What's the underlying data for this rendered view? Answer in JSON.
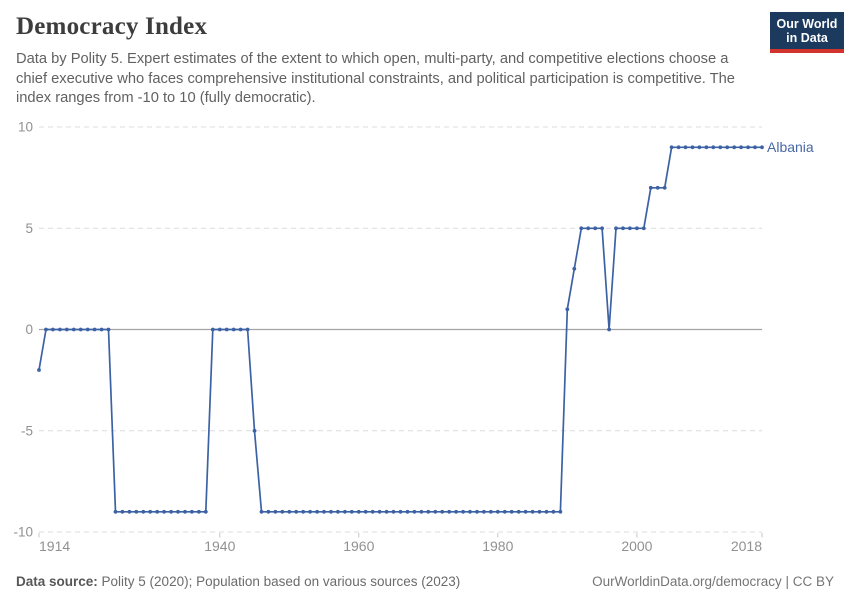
{
  "header": {
    "title": "Democracy Index",
    "subtitle": "Data by Polity 5. Expert estimates of the extent to which open, multi-party, and competitive elections choose a chief executive who faces comprehensive institutional constraints, and political participation is competitive. The index ranges from -10 to 10 (fully democratic)."
  },
  "logo": {
    "line1": "Our World",
    "line2": "in Data",
    "bg": "#1b3a5e",
    "accent": "#d0342c"
  },
  "chart_data": {
    "type": "line",
    "title": "Democracy Index",
    "entity": "Albania",
    "xlabel": "",
    "ylabel": "",
    "xlim": [
      1914,
      2018
    ],
    "ylim": [
      -10,
      10
    ],
    "x_ticks": [
      1914,
      1940,
      1960,
      1980,
      2000,
      2018
    ],
    "y_ticks": [
      -10,
      -5,
      0,
      5,
      10
    ],
    "grid": "horizontal dashed gridlines, solid zero line",
    "legend_position": "label at end of line",
    "series": [
      {
        "name": "Albania",
        "color": "#3c62a4",
        "points": [
          [
            1914,
            -2
          ],
          [
            1915,
            0
          ],
          [
            1916,
            0
          ],
          [
            1917,
            0
          ],
          [
            1918,
            0
          ],
          [
            1919,
            0
          ],
          [
            1920,
            0
          ],
          [
            1921,
            0
          ],
          [
            1922,
            0
          ],
          [
            1923,
            0
          ],
          [
            1924,
            0
          ],
          [
            1925,
            -9
          ],
          [
            1926,
            -9
          ],
          [
            1927,
            -9
          ],
          [
            1928,
            -9
          ],
          [
            1929,
            -9
          ],
          [
            1930,
            -9
          ],
          [
            1931,
            -9
          ],
          [
            1932,
            -9
          ],
          [
            1933,
            -9
          ],
          [
            1934,
            -9
          ],
          [
            1935,
            -9
          ],
          [
            1936,
            -9
          ],
          [
            1937,
            -9
          ],
          [
            1938,
            -9
          ],
          [
            1939,
            0
          ],
          [
            1940,
            0
          ],
          [
            1941,
            0
          ],
          [
            1942,
            0
          ],
          [
            1943,
            0
          ],
          [
            1944,
            0
          ],
          [
            1945,
            -5
          ],
          [
            1946,
            -9
          ],
          [
            1947,
            -9
          ],
          [
            1948,
            -9
          ],
          [
            1949,
            -9
          ],
          [
            1950,
            -9
          ],
          [
            1951,
            -9
          ],
          [
            1952,
            -9
          ],
          [
            1953,
            -9
          ],
          [
            1954,
            -9
          ],
          [
            1955,
            -9
          ],
          [
            1956,
            -9
          ],
          [
            1957,
            -9
          ],
          [
            1958,
            -9
          ],
          [
            1959,
            -9
          ],
          [
            1960,
            -9
          ],
          [
            1961,
            -9
          ],
          [
            1962,
            -9
          ],
          [
            1963,
            -9
          ],
          [
            1964,
            -9
          ],
          [
            1965,
            -9
          ],
          [
            1966,
            -9
          ],
          [
            1967,
            -9
          ],
          [
            1968,
            -9
          ],
          [
            1969,
            -9
          ],
          [
            1970,
            -9
          ],
          [
            1971,
            -9
          ],
          [
            1972,
            -9
          ],
          [
            1973,
            -9
          ],
          [
            1974,
            -9
          ],
          [
            1975,
            -9
          ],
          [
            1976,
            -9
          ],
          [
            1977,
            -9
          ],
          [
            1978,
            -9
          ],
          [
            1979,
            -9
          ],
          [
            1980,
            -9
          ],
          [
            1981,
            -9
          ],
          [
            1982,
            -9
          ],
          [
            1983,
            -9
          ],
          [
            1984,
            -9
          ],
          [
            1985,
            -9
          ],
          [
            1986,
            -9
          ],
          [
            1987,
            -9
          ],
          [
            1988,
            -9
          ],
          [
            1989,
            -9
          ],
          [
            1990,
            1
          ],
          [
            1991,
            3
          ],
          [
            1992,
            5
          ],
          [
            1993,
            5
          ],
          [
            1994,
            5
          ],
          [
            1995,
            5
          ],
          [
            1996,
            0
          ],
          [
            1997,
            5
          ],
          [
            1998,
            5
          ],
          [
            1999,
            5
          ],
          [
            2000,
            5
          ],
          [
            2001,
            5
          ],
          [
            2002,
            7
          ],
          [
            2003,
            7
          ],
          [
            2004,
            7
          ],
          [
            2005,
            9
          ],
          [
            2006,
            9
          ],
          [
            2007,
            9
          ],
          [
            2008,
            9
          ],
          [
            2009,
            9
          ],
          [
            2010,
            9
          ],
          [
            2011,
            9
          ],
          [
            2012,
            9
          ],
          [
            2013,
            9
          ],
          [
            2014,
            9
          ],
          [
            2015,
            9
          ],
          [
            2016,
            9
          ],
          [
            2017,
            9
          ],
          [
            2018,
            9
          ]
        ]
      }
    ]
  },
  "footer": {
    "source_label": "Data source:",
    "source_text": " Polity 5 (2020); Population based on various sources (2023)",
    "attribution": "OurWorldinData.org/democracy | CC BY"
  },
  "colors": {
    "line": "#3c62a4",
    "entity_label": "#4868a5",
    "grid": "#dcdcdc",
    "zero_line": "#a3a3a3",
    "tick_mark": "#c8c8c8",
    "axis_text": "#919191"
  }
}
